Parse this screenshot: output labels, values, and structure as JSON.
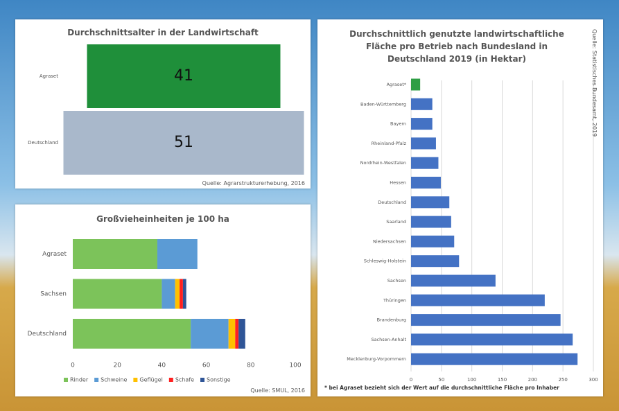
{
  "chart_data": [
    {
      "type": "bar",
      "title": "Durchschnittsalter in der Landwirtschaft",
      "categories": [
        "Agraset",
        "Deutschland"
      ],
      "values": [
        41,
        51
      ],
      "colors": [
        "#1f8f3a",
        "#a9b8cb"
      ],
      "source": "Quelle: Agrarstrukturerhebung, 2016"
    },
    {
      "type": "stacked_bar",
      "title": "Großvieheinheiten je 100 ha",
      "categories": [
        "Agraset",
        "Sachsen",
        "Deutschland"
      ],
      "series": [
        {
          "name": "Rinder",
          "color": "#7cc35a",
          "values": [
            38,
            40,
            53
          ]
        },
        {
          "name": "Schweine",
          "color": "#5b9bd5",
          "values": [
            18,
            6,
            17
          ]
        },
        {
          "name": "Geflügel",
          "color": "#ffc000",
          "values": [
            0,
            2,
            3
          ]
        },
        {
          "name": "Schafe",
          "color": "#ff2020",
          "values": [
            0,
            1.5,
            1.5
          ]
        },
        {
          "name": "Sonstige",
          "color": "#2f5597",
          "values": [
            0,
            1.5,
            3
          ]
        }
      ],
      "xlim": [
        0,
        100
      ],
      "xticks": [
        0,
        20,
        40,
        60,
        80,
        100
      ],
      "legend": "bottom",
      "source": "Quelle: SMUL, 2016"
    },
    {
      "type": "hbar",
      "title": "Durchschnittlich genutzte landwirtschaftliche Fläche pro Betrieb nach Bundesland in Deutschland 2019 (in Hektar)",
      "categories": [
        "Agraset*",
        "Baden-Württemberg",
        "Bayern",
        "Rheinland-Pfalz",
        "Nordrhein-Westfalen",
        "Hessen",
        "Deutschland",
        "Saarland",
        "Niedersachsen",
        "Schleswig-Holstein",
        "Sachsen",
        "Thüringen",
        "Brandenburg",
        "Sachsen-Anhalt",
        "Mecklenburg-Vorpommern"
      ],
      "values": [
        15,
        35,
        35,
        41,
        45,
        49,
        63,
        66,
        71,
        79,
        139,
        220,
        246,
        266,
        274
      ],
      "colors": [
        "#2e9e44",
        "#4472c4",
        "#4472c4",
        "#4472c4",
        "#4472c4",
        "#4472c4",
        "#4472c4",
        "#4472c4",
        "#4472c4",
        "#4472c4",
        "#4472c4",
        "#4472c4",
        "#4472c4",
        "#4472c4",
        "#4472c4"
      ],
      "xlim": [
        0,
        300
      ],
      "xticks": [
        0,
        50,
        100,
        150,
        200,
        250,
        300
      ],
      "grid": true,
      "footnote": "* bei Agraset bezieht sich der Wert auf die durchschnittliche Fläche pro Inhaber",
      "source": "Quelle: Statistisches Bundesamt, 2019"
    }
  ]
}
